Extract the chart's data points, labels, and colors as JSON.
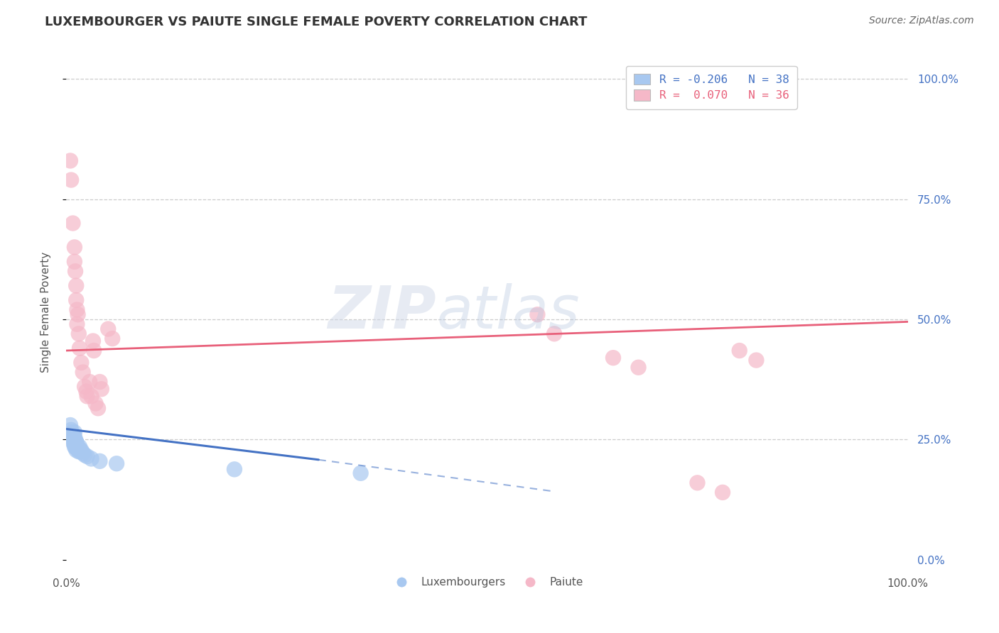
{
  "title": "LUXEMBOURGER VS PAIUTE SINGLE FEMALE POVERTY CORRELATION CHART",
  "source": "Source: ZipAtlas.com",
  "ylabel": "Single Female Poverty",
  "legend_blue_r": "-0.206",
  "legend_blue_n": "38",
  "legend_pink_r": "0.070",
  "legend_pink_n": "36",
  "blue_color": "#a8c8f0",
  "pink_color": "#f5b8c8",
  "blue_line_color": "#4472c4",
  "pink_line_color": "#e8607a",
  "blue_scatter": [
    [
      0.005,
      0.28
    ],
    [
      0.006,
      0.27
    ],
    [
      0.006,
      0.26
    ],
    [
      0.007,
      0.265
    ],
    [
      0.008,
      0.255
    ],
    [
      0.008,
      0.25
    ],
    [
      0.008,
      0.245
    ],
    [
      0.009,
      0.26
    ],
    [
      0.009,
      0.255
    ],
    [
      0.009,
      0.245
    ],
    [
      0.01,
      0.265
    ],
    [
      0.01,
      0.255
    ],
    [
      0.01,
      0.245
    ],
    [
      0.01,
      0.24
    ],
    [
      0.01,
      0.235
    ],
    [
      0.011,
      0.25
    ],
    [
      0.011,
      0.245
    ],
    [
      0.011,
      0.24
    ],
    [
      0.011,
      0.235
    ],
    [
      0.012,
      0.245
    ],
    [
      0.012,
      0.238
    ],
    [
      0.012,
      0.232
    ],
    [
      0.012,
      0.228
    ],
    [
      0.013,
      0.24
    ],
    [
      0.013,
      0.232
    ],
    [
      0.015,
      0.225
    ],
    [
      0.016,
      0.235
    ],
    [
      0.016,
      0.23
    ],
    [
      0.017,
      0.225
    ],
    [
      0.018,
      0.228
    ],
    [
      0.02,
      0.222
    ],
    [
      0.022,
      0.218
    ],
    [
      0.025,
      0.215
    ],
    [
      0.03,
      0.21
    ],
    [
      0.04,
      0.205
    ],
    [
      0.06,
      0.2
    ],
    [
      0.2,
      0.188
    ],
    [
      0.35,
      0.18
    ]
  ],
  "pink_scatter": [
    [
      0.005,
      0.83
    ],
    [
      0.006,
      0.79
    ],
    [
      0.008,
      0.7
    ],
    [
      0.01,
      0.65
    ],
    [
      0.01,
      0.62
    ],
    [
      0.011,
      0.6
    ],
    [
      0.012,
      0.57
    ],
    [
      0.012,
      0.54
    ],
    [
      0.013,
      0.52
    ],
    [
      0.013,
      0.49
    ],
    [
      0.014,
      0.51
    ],
    [
      0.015,
      0.47
    ],
    [
      0.016,
      0.44
    ],
    [
      0.018,
      0.41
    ],
    [
      0.02,
      0.39
    ],
    [
      0.022,
      0.36
    ],
    [
      0.024,
      0.35
    ],
    [
      0.025,
      0.34
    ],
    [
      0.028,
      0.37
    ],
    [
      0.03,
      0.34
    ],
    [
      0.032,
      0.455
    ],
    [
      0.033,
      0.435
    ],
    [
      0.035,
      0.325
    ],
    [
      0.038,
      0.315
    ],
    [
      0.04,
      0.37
    ],
    [
      0.042,
      0.355
    ],
    [
      0.05,
      0.48
    ],
    [
      0.055,
      0.46
    ],
    [
      0.56,
      0.51
    ],
    [
      0.58,
      0.47
    ],
    [
      0.65,
      0.42
    ],
    [
      0.68,
      0.4
    ],
    [
      0.75,
      0.16
    ],
    [
      0.78,
      0.14
    ],
    [
      0.8,
      0.435
    ],
    [
      0.82,
      0.415
    ]
  ],
  "blue_trendline_solid": [
    [
      0.0,
      0.272
    ],
    [
      0.3,
      0.208
    ]
  ],
  "blue_trendline_dash": [
    [
      0.3,
      0.208
    ],
    [
      0.58,
      0.142
    ]
  ],
  "pink_trendline": [
    [
      0.0,
      0.435
    ],
    [
      1.0,
      0.495
    ]
  ],
  "xlim": [
    0.0,
    1.0
  ],
  "ylim": [
    -0.02,
    1.05
  ],
  "yticks": [
    0.0,
    0.25,
    0.5,
    0.75,
    1.0
  ],
  "right_ytick_labels": [
    "0.0%",
    "25.0%",
    "50.0%",
    "75.0%",
    "100.0%"
  ],
  "title_fontsize": 13,
  "right_tick_color": "#4472c4"
}
